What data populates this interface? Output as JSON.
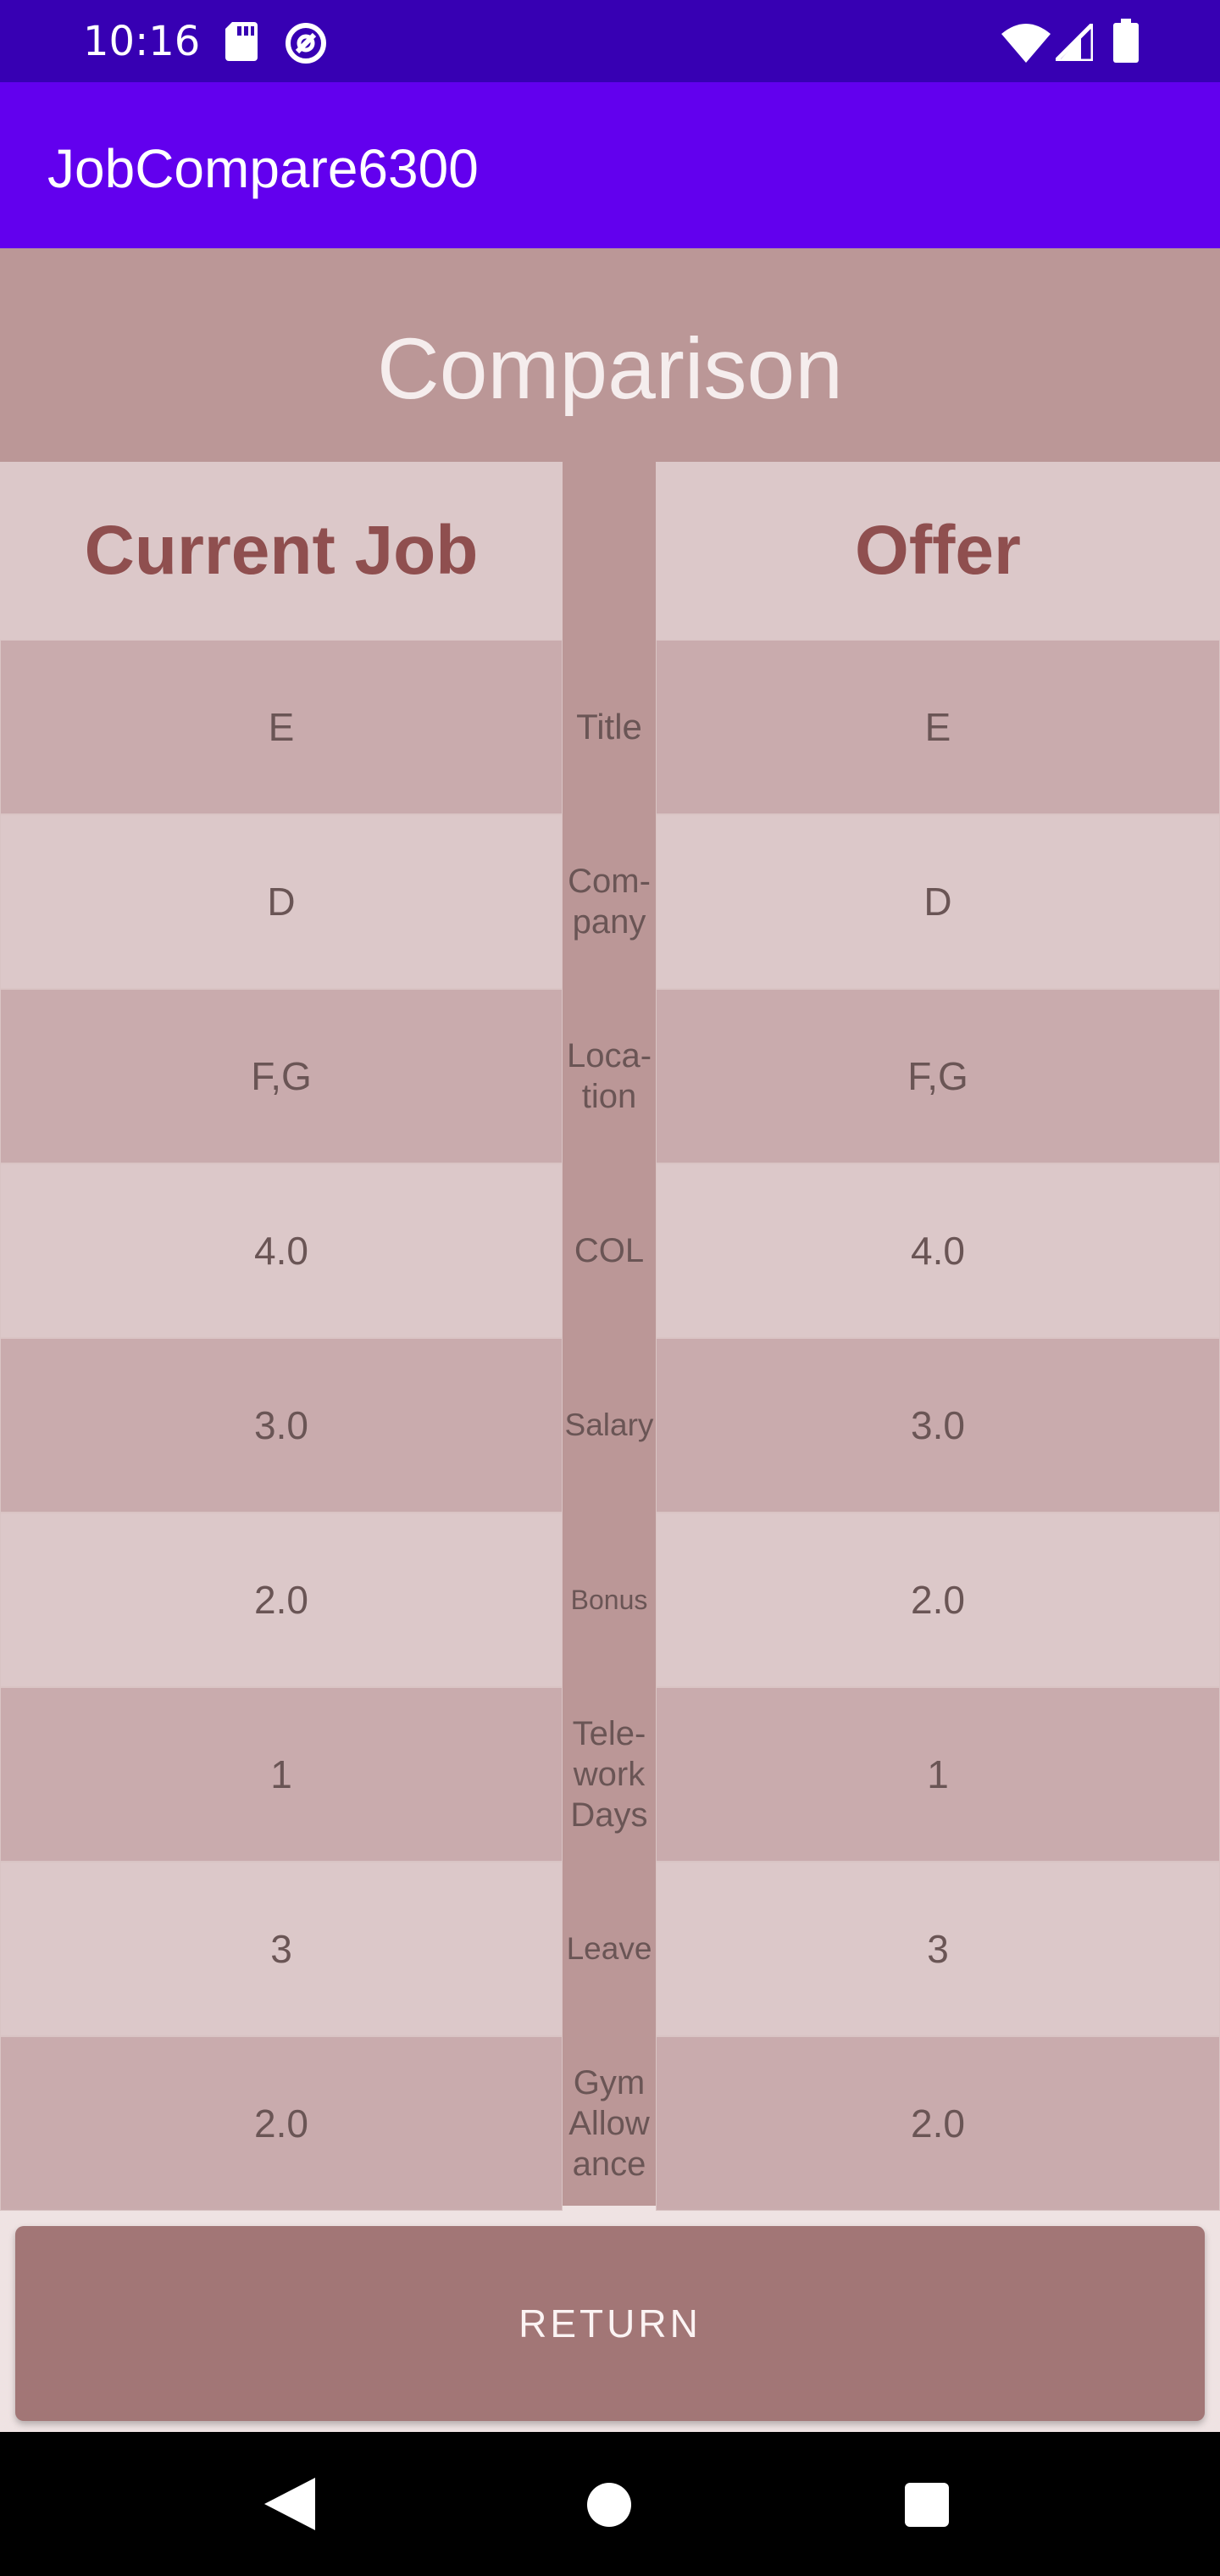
{
  "status_bar": {
    "time": "10:16",
    "icons": [
      "sd-card-icon",
      "sync-icon",
      "wifi-icon",
      "signal-icon",
      "battery-icon"
    ]
  },
  "app_bar": {
    "title": "JobCompare6300"
  },
  "page": {
    "title": "Comparison",
    "current_job_header": "Current Job",
    "offer_header": "Offer"
  },
  "rows": [
    {
      "label": [
        "Title"
      ],
      "current": "E",
      "offer": "E"
    },
    {
      "label": [
        "Com-",
        "pany"
      ],
      "current": "D",
      "offer": "D"
    },
    {
      "label": [
        "Loca-",
        "tion"
      ],
      "current": "F,G",
      "offer": "F,G"
    },
    {
      "label": [
        "COL"
      ],
      "current": "4.0",
      "offer": "4.0"
    },
    {
      "label": [
        "Salary"
      ],
      "current": "3.0",
      "offer": "3.0"
    },
    {
      "label": [
        "Bonus"
      ],
      "current": "2.0",
      "offer": "2.0"
    },
    {
      "label": [
        "Tele-",
        "work",
        "Days"
      ],
      "current": "1",
      "offer": "1"
    },
    {
      "label": [
        "Leave"
      ],
      "current": "3",
      "offer": "3"
    },
    {
      "label": [
        "Gym",
        "Allow",
        "ance"
      ],
      "current": "2.0",
      "offer": "2.0"
    }
  ],
  "actions": {
    "return_label": "RETURN"
  },
  "colors": {
    "status_bar": "#3700b3",
    "app_bar": "#6200ee",
    "header_block": "#bb9797",
    "row_dark": "#c9abad",
    "row_light": "#dcc8c9",
    "column_header_text": "#8f4f4f",
    "return_button": "#a27676"
  }
}
